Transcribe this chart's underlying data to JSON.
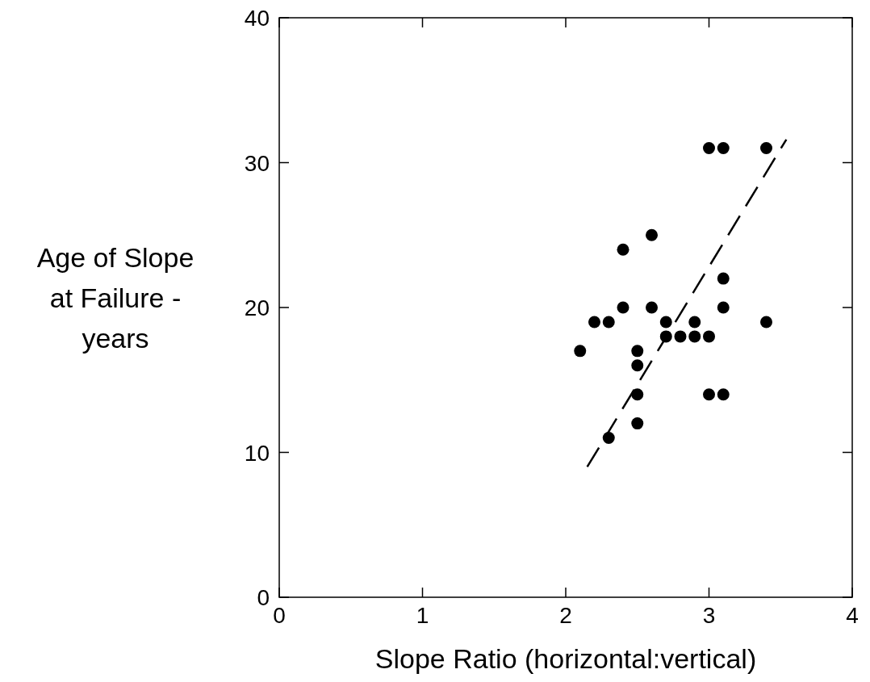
{
  "chart_data": {
    "type": "scatter",
    "xlabel": "Slope Ratio (horizontal:vertical)",
    "ylabel": "Age of Slope at Failure - years",
    "xlim": [
      0,
      4
    ],
    "ylim": [
      0,
      40
    ],
    "xticks": [
      0,
      1,
      2,
      3,
      4
    ],
    "yticks": [
      0,
      10,
      20,
      30,
      40
    ],
    "series": [
      {
        "color": "#000000",
        "marker": "circle",
        "x": [
          2.1,
          2.2,
          2.3,
          2.4,
          2.4,
          2.5,
          2.5,
          2.5,
          2.5,
          2.3,
          2.6,
          2.6,
          2.7,
          2.7,
          2.8,
          2.9,
          2.9,
          3.0,
          3.0,
          3.1,
          3.4,
          3.1,
          3.1,
          3.0,
          3.1,
          3.4
        ],
        "values": [
          17,
          19,
          19,
          24,
          20,
          17,
          16,
          14,
          12,
          11,
          25,
          20,
          19,
          18,
          18,
          19,
          18,
          18,
          31,
          31,
          31,
          22,
          20,
          14,
          14,
          19
        ]
      },
      {
        "type": "line",
        "color": "#000000",
        "line_style": "dashed",
        "marker": "none",
        "x": [
          2.15,
          3.54
        ],
        "values": [
          9.0,
          31.6
        ]
      }
    ]
  }
}
